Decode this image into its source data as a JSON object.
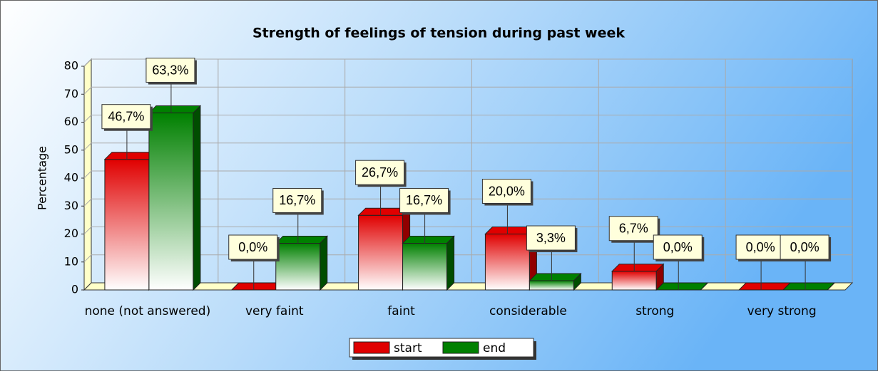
{
  "chart_data": {
    "type": "bar",
    "title": "Strength of feelings of tension during past week",
    "y_label": "Percentage",
    "categories": [
      "none (not answered)",
      "very faint",
      "faint",
      "considerable",
      "strong",
      "very strong"
    ],
    "series": [
      {
        "name": "start",
        "color": "#e00000",
        "values": [
          46.7,
          0,
          26.7,
          20.0,
          6.7,
          0
        ],
        "value_labels": [
          "46,7%",
          "0,0%",
          "26,7%",
          "20,0%",
          "6,7%",
          "0,0%"
        ]
      },
      {
        "name": "end",
        "color": "#008000",
        "values": [
          63.3,
          16.7,
          16.7,
          3.3,
          0,
          0
        ],
        "value_labels": [
          "63,3%",
          "16,7%",
          "16,7%",
          "3,3%",
          "0,0%",
          "0,0%"
        ]
      }
    ],
    "ylim": [
      0,
      80
    ],
    "yticks": [
      0,
      10,
      20,
      30,
      40,
      50,
      60,
      70,
      80
    ],
    "grid": true,
    "legend": "bottom"
  }
}
